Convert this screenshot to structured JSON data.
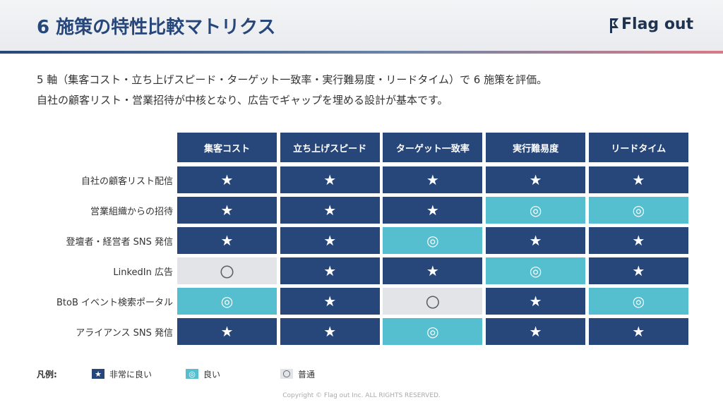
{
  "header": {
    "title": "6 施策の特性比較マトリクス",
    "logo": "Flag out"
  },
  "description": [
    "5 軸（集客コスト・立ち上げスピード・ターゲット一致率・実行難易度・リードタイム）で 6 施策を評価。",
    "自社の顧客リスト・営業招待が中核となり、広告でギャップを埋める設計が基本です。"
  ],
  "table": {
    "columns": [
      "集客コスト",
      "立ち上げスピード",
      "ターゲット一致率",
      "実行難易度",
      "リードタイム"
    ],
    "rows": [
      {
        "label": "自社の顧客リスト配信",
        "cells": [
          "★",
          "★",
          "★",
          "★",
          "★"
        ]
      },
      {
        "label": "営業組織からの招待",
        "cells": [
          "★",
          "★",
          "★",
          "◎",
          "◎"
        ]
      },
      {
        "label": "登壇者・経営者 SNS 発信",
        "cells": [
          "★",
          "★",
          "◎",
          "★",
          "★"
        ]
      },
      {
        "label": "LinkedIn 広告",
        "cells": [
          "〇",
          "★",
          "★",
          "◎",
          "★"
        ]
      },
      {
        "label": "BtoB イベント検索ポータル",
        "cells": [
          "◎",
          "★",
          "〇",
          "★",
          "◎"
        ]
      },
      {
        "label": "アライアンス SNS 発信",
        "cells": [
          "★",
          "★",
          "◎",
          "★",
          "★"
        ]
      }
    ]
  },
  "legend": {
    "title": "凡例:",
    "items": [
      {
        "symbol": "★",
        "label": "非常に良い",
        "color": "#27477a",
        "text_color": "#ffffff"
      },
      {
        "symbol": "◎",
        "label": "良い",
        "color": "#55bfd0",
        "text_color": "#ffffff"
      },
      {
        "symbol": "〇",
        "label": "普通",
        "color": "#e2e4e7",
        "text_color": "#5a5f66"
      }
    ]
  },
  "footer": "Copyright © Flag out Inc. ALL RIGHTS RESERVED."
}
